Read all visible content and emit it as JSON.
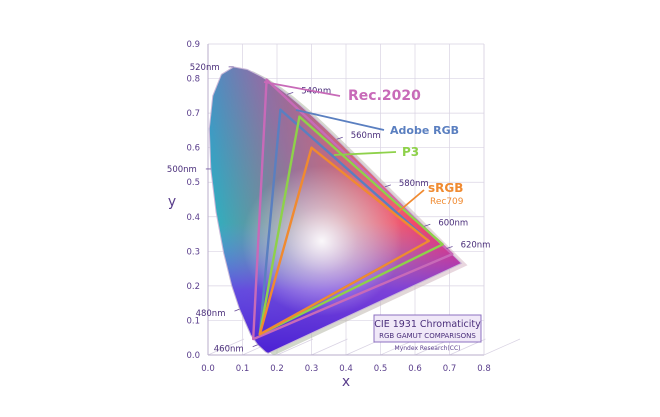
{
  "chart_data": {
    "type": "scatter",
    "title": "CIE 1931 Chromaticity",
    "subtitle": "RGB GAMUT COMPARISONS",
    "credit": "Myndex Research(CC)",
    "xlabel": "x",
    "ylabel": "y",
    "xlim": [
      0.0,
      0.8
    ],
    "ylim": [
      0.0,
      0.9
    ],
    "x_ticks": [
      "0.0",
      "0.1",
      "0.2",
      "0.3",
      "0.4",
      "0.5",
      "0.6",
      "0.7",
      "0.8"
    ],
    "y_ticks": [
      "0.0",
      "0.1",
      "0.2",
      "0.3",
      "0.4",
      "0.5",
      "0.6",
      "0.7",
      "0.8",
      "0.9"
    ],
    "grid": true,
    "spectral_locus": [
      [
        0.1741,
        0.005
      ],
      [
        0.1666,
        0.0089
      ],
      [
        0.144,
        0.0297
      ],
      [
        0.1241,
        0.0578
      ],
      [
        0.0913,
        0.1327
      ],
      [
        0.0687,
        0.2007
      ],
      [
        0.0454,
        0.295
      ],
      [
        0.0235,
        0.4127
      ],
      [
        0.0082,
        0.5384
      ],
      [
        0.0039,
        0.6548
      ],
      [
        0.0139,
        0.7502
      ],
      [
        0.0389,
        0.812
      ],
      [
        0.0743,
        0.8338
      ],
      [
        0.1142,
        0.8262
      ],
      [
        0.1547,
        0.8059
      ],
      [
        0.1929,
        0.7816
      ],
      [
        0.2296,
        0.7543
      ],
      [
        0.2658,
        0.7243
      ],
      [
        0.3016,
        0.6923
      ],
      [
        0.3373,
        0.6589
      ],
      [
        0.3731,
        0.6245
      ],
      [
        0.4087,
        0.5896
      ],
      [
        0.4441,
        0.5547
      ],
      [
        0.4788,
        0.5202
      ],
      [
        0.5125,
        0.4866
      ],
      [
        0.5448,
        0.4544
      ],
      [
        0.5752,
        0.4242
      ],
      [
        0.6029,
        0.3965
      ],
      [
        0.627,
        0.3725
      ],
      [
        0.6482,
        0.3514
      ],
      [
        0.6658,
        0.334
      ],
      [
        0.6801,
        0.3197
      ],
      [
        0.6915,
        0.3083
      ],
      [
        0.7006,
        0.2993
      ],
      [
        0.7079,
        0.292
      ],
      [
        0.7347,
        0.2653
      ]
    ],
    "wavelength_labels": [
      {
        "label": "460nm",
        "x": 0.144,
        "y": 0.0297
      },
      {
        "label": "480nm",
        "x": 0.0913,
        "y": 0.1327
      },
      {
        "label": "500nm",
        "x": 0.0082,
        "y": 0.5384
      },
      {
        "label": "520nm",
        "x": 0.0743,
        "y": 0.8338
      },
      {
        "label": "540nm",
        "x": 0.2296,
        "y": 0.7543
      },
      {
        "label": "560nm",
        "x": 0.3731,
        "y": 0.6245
      },
      {
        "label": "580nm",
        "x": 0.5125,
        "y": 0.4866
      },
      {
        "label": "600nm",
        "x": 0.627,
        "y": 0.3725
      },
      {
        "label": "620nm",
        "x": 0.6915,
        "y": 0.3083
      }
    ],
    "series": [
      {
        "name": "Rec.2020",
        "color": "#c86ab8",
        "points": [
          [
            0.708,
            0.292
          ],
          [
            0.17,
            0.797
          ],
          [
            0.131,
            0.046
          ]
        ]
      },
      {
        "name": "Adobe RGB",
        "color": "#5a7fc0",
        "points": [
          [
            0.64,
            0.33
          ],
          [
            0.21,
            0.71
          ],
          [
            0.15,
            0.06
          ]
        ]
      },
      {
        "name": "P3",
        "color": "#8ed14a",
        "points": [
          [
            0.68,
            0.32
          ],
          [
            0.265,
            0.69
          ],
          [
            0.15,
            0.06
          ]
        ]
      },
      {
        "name": "sRGB",
        "sublabel": "Rec709",
        "color": "#f08a30",
        "points": [
          [
            0.64,
            0.33
          ],
          [
            0.3,
            0.6
          ],
          [
            0.15,
            0.06
          ]
        ]
      }
    ],
    "legend_placement": "right"
  }
}
